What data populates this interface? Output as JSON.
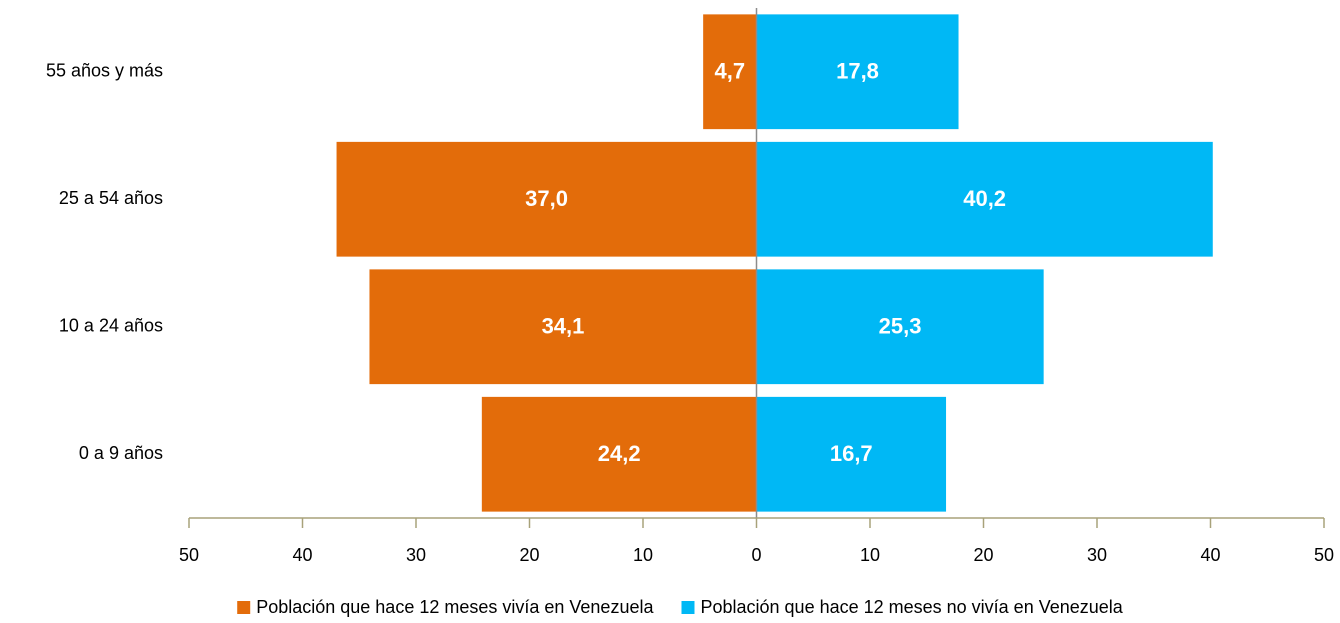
{
  "chart_data": {
    "type": "bar",
    "orientation": "horizontal",
    "categories": [
      "0 a 9 años",
      "10 a 24 años",
      "25 a 54 años",
      "55 años y más"
    ],
    "series": [
      {
        "name": "Población que hace 12 meses vivía en Venezuela",
        "color": "#e36c0a",
        "values": [
          -24.2,
          -34.1,
          -37.0,
          -4.7
        ],
        "value_labels": [
          "24,2",
          "34,1",
          "37,0",
          "4,7"
        ]
      },
      {
        "name": "Población que hace 12 meses no vivía en Venezuela",
        "color": "#00b8f5",
        "values": [
          16.7,
          25.3,
          40.2,
          17.8
        ],
        "value_labels": [
          "16,7",
          "25,3",
          "40,2",
          "17,8"
        ]
      }
    ],
    "xlim": [
      -50,
      50
    ],
    "xticks": [
      {
        "value": -50,
        "label": "50"
      },
      {
        "value": -40,
        "label": "40"
      },
      {
        "value": -30,
        "label": "30"
      },
      {
        "value": -20,
        "label": "20"
      },
      {
        "value": -10,
        "label": "10"
      },
      0,
      10,
      20,
      30,
      40,
      50
    ],
    "legend": "bottom"
  }
}
